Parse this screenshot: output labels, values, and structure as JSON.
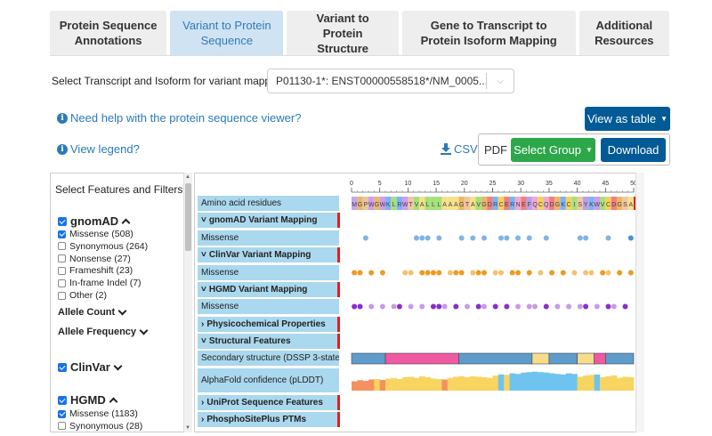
{
  "tabs": [
    {
      "label": "Protein Sequence Annotations",
      "active": false
    },
    {
      "label": "Variant to Protein Sequence",
      "active": true
    },
    {
      "label": "Variant to Protein Structure",
      "active": false
    },
    {
      "label": "Gene to Transcript to Protein Isoform Mapping",
      "active": false
    },
    {
      "label": "Additional Resources",
      "active": false
    }
  ],
  "transcript_select": {
    "label": "Select Transcript and Isoform for variant mapping:",
    "value": "P01130-1*: ENST00000558518*/NM_0005..."
  },
  "help": {
    "protein_viewer": "Need help with the protein sequence viewer?",
    "legend": "View legend?"
  },
  "buttons": {
    "view_as_table": "View as table",
    "csv": "CSV",
    "pdf": "PDF",
    "select_group": "Select Group",
    "download": "Download"
  },
  "filters": {
    "title": "Select Features and Filters",
    "gnomad": {
      "label": "gnomAD",
      "options": [
        {
          "label": "Missense (508)",
          "checked": true
        },
        {
          "label": "Synonymous (264)",
          "checked": false
        },
        {
          "label": "Nonsense (27)",
          "checked": false
        },
        {
          "label": "Frameshift (23)",
          "checked": false
        },
        {
          "label": "In-frame Indel (7)",
          "checked": false
        },
        {
          "label": "Other (2)",
          "checked": false
        }
      ],
      "allele_count": "Allele Count",
      "allele_frequency": "Allele Frequency"
    },
    "clinvar": {
      "label": "ClinVar"
    },
    "hgmd": {
      "label": "HGMD",
      "options": [
        {
          "label": "Missense (1183)",
          "checked": true
        },
        {
          "label": "Synonymous (28)",
          "checked": false
        }
      ]
    }
  },
  "tracks": [
    {
      "label": "Amino acid residues",
      "header": false
    },
    {
      "label": "gnomAD Variant Mapping",
      "header": true,
      "arrow": "˅"
    },
    {
      "label": "Missense",
      "header": false
    },
    {
      "label": "ClinVar Variant Mapping",
      "header": true,
      "arrow": "˅"
    },
    {
      "label": "Missense",
      "header": false
    },
    {
      "label": "HGMD Variant Mapping",
      "header": true,
      "arrow": "˅"
    },
    {
      "label": "Missense",
      "header": false
    },
    {
      "label": "Physicochemical Properties",
      "header": true,
      "arrow": "›"
    },
    {
      "label": "Structural Features",
      "header": true,
      "arrow": "˅"
    },
    {
      "label": "Secondary structure (DSSP 3-state)*",
      "header": false
    },
    {
      "label": "AlphaFold confidence (pLDDT)",
      "header": false
    },
    {
      "label": "UniProt Sequence Features",
      "header": true,
      "arrow": "›"
    },
    {
      "label": "PhosphoSitePlus PTMs",
      "header": true,
      "arrow": "›"
    }
  ],
  "ruler": {
    "ticks": [
      0,
      5,
      10,
      15,
      20,
      25,
      30,
      35,
      40,
      45,
      50
    ],
    "max": 50
  },
  "sequence": "MGPWGWKLRWTVALLLAAAGTAVGDRCERNEFQCQDGKCISYKWVCDGSA",
  "variants": {
    "gnomad_missense": [
      {
        "pos": 3,
        "shade": "light"
      },
      {
        "pos": 12,
        "shade": "light"
      },
      {
        "pos": 13,
        "shade": "light"
      },
      {
        "pos": 14,
        "shade": "light"
      },
      {
        "pos": 16,
        "shade": "light"
      },
      {
        "pos": 20,
        "shade": "light"
      },
      {
        "pos": 22,
        "shade": "light"
      },
      {
        "pos": 24,
        "shade": "light"
      },
      {
        "pos": 27,
        "shade": "light"
      },
      {
        "pos": 28,
        "shade": "light"
      },
      {
        "pos": 30,
        "shade": "light"
      },
      {
        "pos": 32,
        "shade": "light"
      },
      {
        "pos": 35,
        "shade": "light"
      },
      {
        "pos": 41,
        "shade": "light"
      },
      {
        "pos": 42,
        "shade": "light"
      },
      {
        "pos": 46,
        "shade": "light"
      },
      {
        "pos": 50,
        "shade": "dark"
      }
    ],
    "clinvar_missense": [
      {
        "pos": 1,
        "shade": "dark"
      },
      {
        "pos": 2,
        "shade": "dark"
      },
      {
        "pos": 4,
        "shade": "dark"
      },
      {
        "pos": 6,
        "shade": "dark"
      },
      {
        "pos": 10,
        "shade": "light"
      },
      {
        "pos": 11,
        "shade": "light"
      },
      {
        "pos": 13,
        "shade": "dark"
      },
      {
        "pos": 14,
        "shade": "dark"
      },
      {
        "pos": 15,
        "shade": "dark"
      },
      {
        "pos": 16,
        "shade": "dark"
      },
      {
        "pos": 18,
        "shade": "light"
      },
      {
        "pos": 19,
        "shade": "dark"
      },
      {
        "pos": 20,
        "shade": "dark"
      },
      {
        "pos": 22,
        "shade": "light"
      },
      {
        "pos": 23,
        "shade": "dark"
      },
      {
        "pos": 24,
        "shade": "dark"
      },
      {
        "pos": 26,
        "shade": "light"
      },
      {
        "pos": 27,
        "shade": "light"
      },
      {
        "pos": 29,
        "shade": "dark"
      },
      {
        "pos": 30,
        "shade": "dark"
      },
      {
        "pos": 32,
        "shade": "dark"
      },
      {
        "pos": 34,
        "shade": "light"
      },
      {
        "pos": 36,
        "shade": "dark"
      },
      {
        "pos": 38,
        "shade": "dark"
      },
      {
        "pos": 40,
        "shade": "light"
      },
      {
        "pos": 42,
        "shade": "light"
      },
      {
        "pos": 43,
        "shade": "light"
      },
      {
        "pos": 45,
        "shade": "dark"
      },
      {
        "pos": 46,
        "shade": "light"
      },
      {
        "pos": 48,
        "shade": "dark"
      },
      {
        "pos": 50,
        "shade": "dark"
      }
    ],
    "hgmd_missense": [
      {
        "pos": 1,
        "shade": "dark"
      },
      {
        "pos": 2,
        "shade": "dark"
      },
      {
        "pos": 4,
        "shade": "light"
      },
      {
        "pos": 6,
        "shade": "light"
      },
      {
        "pos": 8,
        "shade": "light"
      },
      {
        "pos": 9,
        "shade": "dark"
      },
      {
        "pos": 11,
        "shade": "light"
      },
      {
        "pos": 13,
        "shade": "light"
      },
      {
        "pos": 15,
        "shade": "dark"
      },
      {
        "pos": 16,
        "shade": "dark"
      },
      {
        "pos": 17,
        "shade": "light"
      },
      {
        "pos": 19,
        "shade": "dark"
      },
      {
        "pos": 21,
        "shade": "light"
      },
      {
        "pos": 23,
        "shade": "dark"
      },
      {
        "pos": 24,
        "shade": "light"
      },
      {
        "pos": 26,
        "shade": "dark"
      },
      {
        "pos": 28,
        "shade": "dark"
      },
      {
        "pos": 30,
        "shade": "light"
      },
      {
        "pos": 32,
        "shade": "light"
      },
      {
        "pos": 33,
        "shade": "light"
      },
      {
        "pos": 35,
        "shade": "dark"
      },
      {
        "pos": 37,
        "shade": "light"
      },
      {
        "pos": 39,
        "shade": "light"
      },
      {
        "pos": 41,
        "shade": "light"
      },
      {
        "pos": 42,
        "shade": "dark"
      },
      {
        "pos": 44,
        "shade": "light"
      },
      {
        "pos": 46,
        "shade": "dark"
      },
      {
        "pos": 47,
        "shade": "light"
      },
      {
        "pos": 49,
        "shade": "dark"
      }
    ]
  },
  "secondary_structure": [
    {
      "start": 1,
      "end": 6,
      "type": "coil"
    },
    {
      "start": 7,
      "end": 19,
      "type": "helix"
    },
    {
      "start": 20,
      "end": 32,
      "type": "coil"
    },
    {
      "start": 33,
      "end": 35,
      "type": "strand"
    },
    {
      "start": 36,
      "end": 40,
      "type": "coil"
    },
    {
      "start": 41,
      "end": 43,
      "type": "strand"
    },
    {
      "start": 44,
      "end": 45,
      "type": "helix"
    },
    {
      "start": 46,
      "end": 50,
      "type": "coil"
    }
  ],
  "plddt": [
    40,
    45,
    42,
    48,
    50,
    46,
    52,
    55,
    50,
    58,
    60,
    55,
    62,
    58,
    52,
    50,
    48,
    55,
    60,
    62,
    58,
    62,
    60,
    58,
    55,
    65,
    70,
    68,
    75,
    72,
    78,
    80,
    82,
    80,
    78,
    75,
    72,
    70,
    75,
    72,
    60,
    65,
    68,
    70,
    58,
    62,
    66,
    55,
    60,
    58
  ],
  "colors": {
    "tab_active_bg": "#cfe3f3",
    "primary": "#005a96",
    "green": "#2ca84a",
    "label_bg": "#aad8ee",
    "gnomad_light": "#7fb4e8",
    "gnomad_dark": "#4a8fd6",
    "clinvar_light": "#f7c06a",
    "clinvar_dark": "#ee9a20",
    "hgmd_light": "#c79be8",
    "hgmd_dark": "#8a2ecc",
    "coil": "#5f9cc9",
    "helix": "#ef5aa0",
    "strand": "#f7dc8a",
    "plddt_very_low": "#f5905f",
    "plddt_low": "#f7d560",
    "plddt_high": "#6ec4ee"
  }
}
